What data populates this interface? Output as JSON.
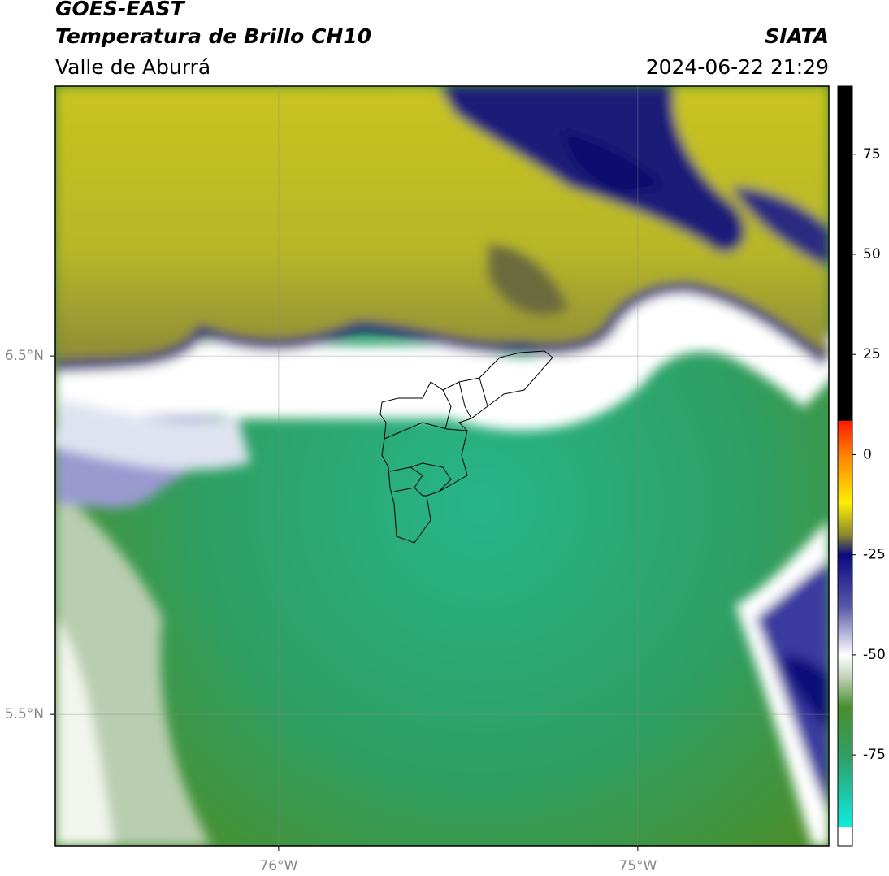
{
  "header": {
    "title": "GOES-EAST",
    "subtitle": "Temperatura de Brillo CH10",
    "region": "Valle de Aburrá",
    "source": "SIATA",
    "datetime": "2024-06-22 21:29"
  },
  "map": {
    "lon_range": [
      -76.622,
      -74.468
    ],
    "lat_range": [
      5.133,
      7.253
    ],
    "lat_ticks": [
      {
        "value": 6.5,
        "label": "6.5°N"
      },
      {
        "value": 5.5,
        "label": "5.5°N"
      }
    ],
    "lon_ticks": [
      {
        "value": -76,
        "label": "76°W"
      },
      {
        "value": -75,
        "label": "75°W"
      }
    ]
  },
  "colorbar": {
    "range": [
      -97.7,
      92
    ],
    "ticks": [
      75,
      50,
      25,
      0,
      -25,
      -50,
      -75
    ],
    "colormap": [
      {
        "value": 92,
        "color": "#000000"
      },
      {
        "value": 8.5,
        "color": "#000000"
      },
      {
        "value": 8.4,
        "color": "#ff1a00"
      },
      {
        "value": 0,
        "color": "#ff8000"
      },
      {
        "value": -12,
        "color": "#ffee00"
      },
      {
        "value": -20,
        "color": "#8a8a30"
      },
      {
        "value": -25,
        "color": "#0a0a80"
      },
      {
        "value": -38,
        "color": "#5858a8"
      },
      {
        "value": -45,
        "color": "#b8b8dc"
      },
      {
        "value": -50,
        "color": "#ffffff"
      },
      {
        "value": -55,
        "color": "#c8d8c0"
      },
      {
        "value": -63,
        "color": "#4a8f2e"
      },
      {
        "value": -76,
        "color": "#2fa06a"
      },
      {
        "value": -92,
        "color": "#10e8d8"
      },
      {
        "value": -93,
        "color": "#10e8d8"
      },
      {
        "value": -93.1,
        "color": "#ffffff"
      },
      {
        "value": -97.7,
        "color": "#ffffff"
      }
    ]
  }
}
